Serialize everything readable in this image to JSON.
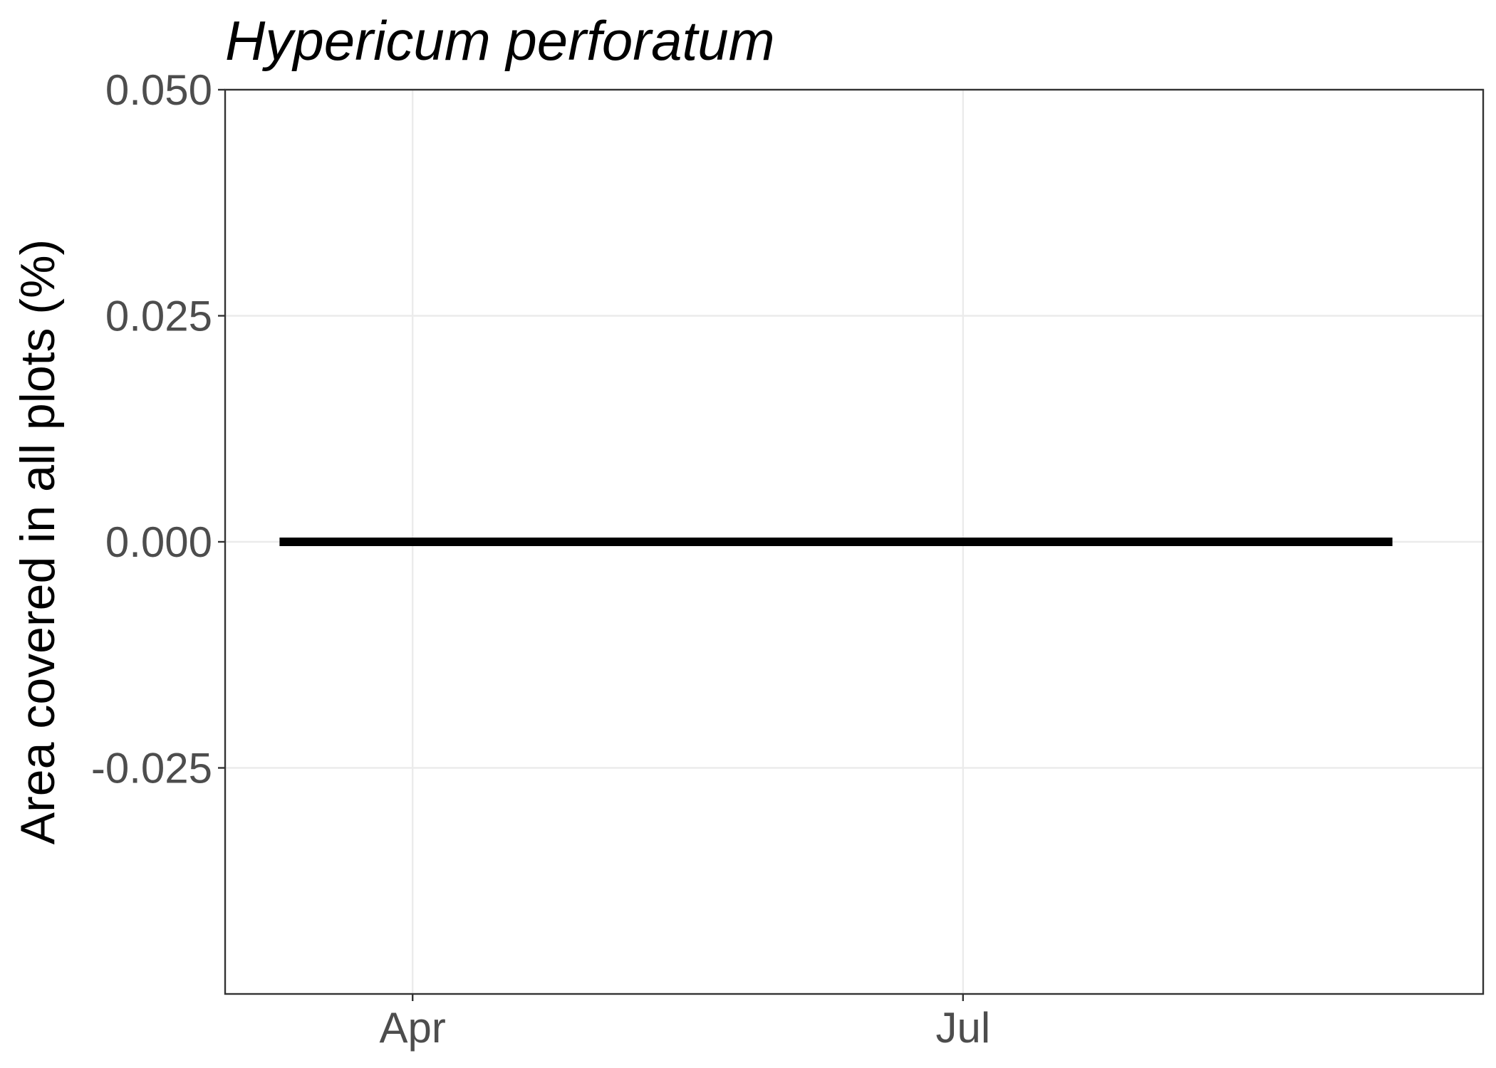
{
  "chart_data": {
    "type": "line",
    "title": "Hypericum perforatum",
    "xlabel": "",
    "ylabel": "Area covered in all plots (%)",
    "x_ticks": [
      "Apr",
      "Jul"
    ],
    "y_ticks": [
      "0.050",
      "0.025",
      "0.000",
      "-0.025"
    ],
    "ylim": [
      -0.05,
      0.05
    ],
    "xlim": [
      "2023-03-01",
      "2023-09-25"
    ],
    "grid": true,
    "series": [
      {
        "x": [
          "2023-03-10",
          "2023-09-10"
        ],
        "y": [
          0.0,
          0.0
        ]
      }
    ],
    "colors": {
      "line": "#000000",
      "grid": "#ebebeb",
      "panel_border": "#333333",
      "tick_text": "#4d4d4d"
    }
  }
}
